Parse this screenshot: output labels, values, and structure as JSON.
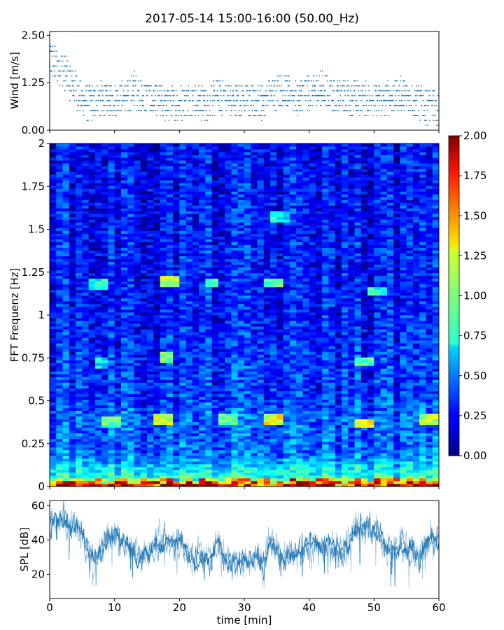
{
  "figure": {
    "title": "2017-05-14 15:00-16:00 (50.00_Hz)"
  },
  "chart_data": [
    {
      "type": "scatter",
      "panel": "wind",
      "ylabel": "Wind [m/s]",
      "xlabel": "",
      "xlim": [
        0,
        60
      ],
      "ylim": [
        0,
        2.6
      ],
      "yticks": [
        0.0,
        1.25,
        2.5
      ],
      "ytick_labels": [
        "0.00",
        "1.25",
        "2.50"
      ],
      "color": "#1f77b4",
      "series": [
        {
          "x": [
            0,
            1,
            2,
            3,
            4,
            5,
            6,
            8,
            10,
            12,
            13,
            14,
            16,
            18,
            20,
            22,
            24,
            26,
            28,
            30,
            32,
            34,
            36,
            38,
            39,
            40,
            42,
            44,
            46,
            48,
            50,
            52,
            54,
            55,
            56,
            58,
            60
          ],
          "y": [
            1.9,
            1.7,
            1.6,
            1.3,
            1.1,
            0.8,
            0.7,
            0.8,
            0.8,
            0.9,
            1.1,
            0.9,
            0.8,
            0.7,
            0.7,
            0.8,
            0.7,
            0.9,
            0.8,
            0.8,
            0.7,
            0.9,
            1.1,
            0.8,
            1.0,
            1.0,
            1.1,
            0.9,
            0.9,
            0.8,
            0.8,
            0.8,
            1.0,
            0.9,
            0.8,
            0.6,
            0.6
          ]
        }
      ]
    },
    {
      "type": "heatmap",
      "panel": "spectrogram",
      "ylabel": "FFT Frequenz [Hz]",
      "xlabel": "",
      "xlim": [
        0,
        60
      ],
      "ylim": [
        0,
        2
      ],
      "yticks": [
        0,
        0.25,
        0.5,
        0.75,
        1,
        1.25,
        1.5,
        1.75,
        2
      ],
      "ytick_labels": [
        "0",
        "0.25",
        "0.5",
        "0.75",
        "1",
        "1.25",
        "1.5",
        "1.75",
        "2"
      ],
      "colormap": "jet",
      "colorbar": {
        "vmin": 0.0,
        "vmax": 2.0,
        "ticks": [
          0.0,
          0.25,
          0.5,
          0.75,
          1.0,
          1.25,
          1.5,
          1.75,
          2.0
        ],
        "tick_labels": [
          "0.00",
          "0.25",
          "0.50",
          "0.75",
          "1.00",
          "1.25",
          "1.50",
          "1.75",
          "2.00"
        ]
      },
      "freq_profile": {
        "freq": [
          0,
          0.05,
          0.1,
          0.2,
          0.3,
          0.4,
          0.5,
          0.75,
          1.0,
          1.5,
          2.0
        ],
        "level": [
          1.6,
          0.8,
          0.7,
          0.45,
          0.42,
          0.45,
          0.35,
          0.33,
          0.28,
          0.27,
          0.25
        ]
      },
      "hotspots": [
        {
          "t": [
            8,
            11
          ],
          "f": 0.37,
          "level": 1.1
        },
        {
          "t": [
            16,
            19
          ],
          "f": 0.38,
          "level": 1.3
        },
        {
          "t": [
            26,
            29
          ],
          "f": 0.39,
          "level": 1.1
        },
        {
          "t": [
            33,
            36
          ],
          "f": 0.38,
          "level": 1.4
        },
        {
          "t": [
            47,
            50
          ],
          "f": 0.36,
          "level": 1.4
        },
        {
          "t": [
            57,
            60
          ],
          "f": 0.38,
          "level": 1.3
        },
        {
          "t": [
            6,
            9
          ],
          "f": 1.17,
          "level": 1.0
        },
        {
          "t": [
            17,
            20
          ],
          "f": 1.19,
          "level": 1.3
        },
        {
          "t": [
            24,
            26
          ],
          "f": 1.18,
          "level": 1.0
        },
        {
          "t": [
            33,
            36
          ],
          "f": 1.18,
          "level": 1.1
        },
        {
          "t": [
            49,
            52
          ],
          "f": 1.13,
          "level": 1.0
        },
        {
          "t": [
            17,
            19
          ],
          "f": 0.75,
          "level": 1.2
        },
        {
          "t": [
            7,
            9
          ],
          "f": 0.71,
          "level": 0.9
        },
        {
          "t": [
            47,
            50
          ],
          "f": 0.72,
          "level": 1.1
        },
        {
          "t": [
            34,
            37
          ],
          "f": 1.57,
          "level": 0.9
        }
      ]
    },
    {
      "type": "line",
      "panel": "spl",
      "ylabel": "SPL [dB]",
      "xlabel": "time [min]",
      "xlim": [
        0,
        60
      ],
      "ylim": [
        6,
        63
      ],
      "yticks": [
        20,
        40,
        60
      ],
      "ytick_labels": [
        "20",
        "40",
        "60"
      ],
      "xticks": [
        0,
        10,
        20,
        30,
        40,
        50,
        60
      ],
      "xtick_labels": [
        "0",
        "10",
        "20",
        "30",
        "40",
        "50",
        "60"
      ],
      "color": "#1f77b4",
      "series": [
        {
          "x": [
            0,
            1,
            2,
            3,
            4,
            5,
            6,
            7,
            8,
            9,
            10,
            11,
            12,
            13,
            14,
            15,
            16,
            17,
            18,
            19,
            20,
            21,
            22,
            23,
            24,
            25,
            26,
            27,
            28,
            29,
            30,
            31,
            32,
            33,
            34,
            35,
            36,
            37,
            38,
            39,
            40,
            41,
            42,
            43,
            44,
            45,
            46,
            47,
            48,
            49,
            50,
            51,
            52,
            53,
            54,
            55,
            56,
            57,
            58,
            59,
            60
          ],
          "y": [
            45,
            52,
            53,
            48,
            50,
            45,
            33,
            30,
            35,
            40,
            42,
            40,
            36,
            32,
            28,
            32,
            35,
            38,
            40,
            35,
            40,
            33,
            31,
            28,
            32,
            30,
            38,
            30,
            27,
            31,
            28,
            27,
            29,
            26,
            40,
            35,
            30,
            30,
            32,
            35,
            38,
            37,
            35,
            37,
            36,
            33,
            35,
            47,
            49,
            47,
            48,
            42,
            33,
            35,
            33,
            36,
            34,
            29,
            39,
            42,
            38
          ]
        }
      ]
    }
  ]
}
